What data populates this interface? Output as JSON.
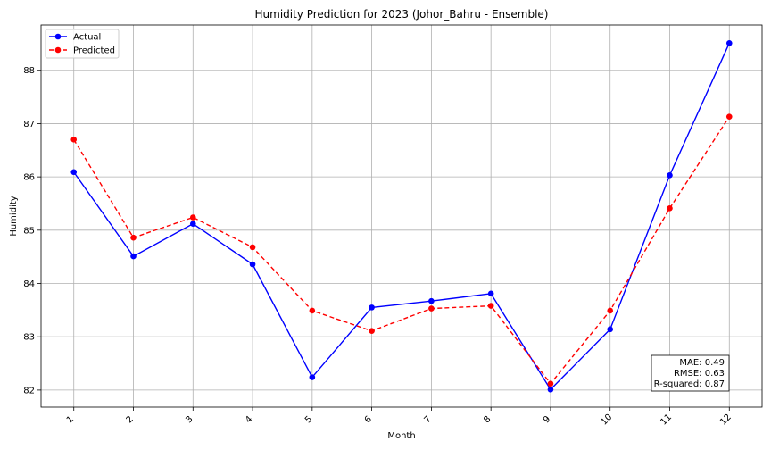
{
  "chart_data": {
    "type": "line",
    "title": "Humidity Prediction for 2023 (Johor_Bahru - Ensemble)",
    "xlabel": "Month",
    "ylabel": "Humidity",
    "x": [
      1,
      2,
      3,
      4,
      5,
      6,
      7,
      8,
      9,
      10,
      11,
      12
    ],
    "xlim": [
      0.45,
      12.55
    ],
    "ylim": [
      81.68,
      88.85
    ],
    "yticks": [
      82,
      83,
      84,
      85,
      86,
      87,
      88
    ],
    "grid": true,
    "legend_position": "upper left",
    "series": [
      {
        "name": "Actual",
        "color": "#0000ff",
        "linestyle": "solid",
        "marker": "circle",
        "values": [
          86.09,
          84.51,
          85.12,
          84.36,
          82.24,
          83.55,
          83.67,
          83.81,
          82.01,
          83.14,
          86.03,
          88.51
        ]
      },
      {
        "name": "Predicted",
        "color": "#ff0000",
        "linestyle": "dashed",
        "marker": "circle",
        "values": [
          86.7,
          84.86,
          85.24,
          84.68,
          83.49,
          83.11,
          83.53,
          83.58,
          82.12,
          83.49,
          85.41,
          87.13
        ]
      }
    ],
    "metrics": [
      "MAE: 0.49",
      "RMSE: 0.63",
      "R-squared: 0.87"
    ]
  }
}
